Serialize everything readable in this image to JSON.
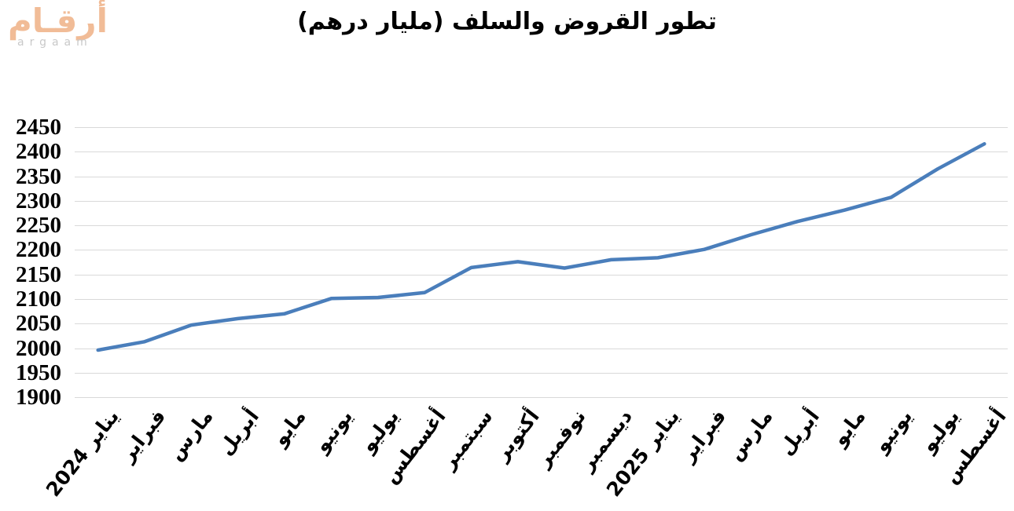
{
  "logo": {
    "arabic": "أرقـام",
    "latin": "argaam"
  },
  "colors": {
    "line": "#4a7ebb",
    "gridline": "#d9d9d9",
    "logo_arabic": "#f1bc97",
    "logo_latin": "#c9c9c9",
    "text": "#000000"
  },
  "chart_data": {
    "type": "line",
    "title": "تطور القروض والسلف (مليار درهم)",
    "categories": [
      "يناير 2024",
      "فبراير",
      "مارس",
      "أبريل",
      "مايو",
      "يونيو",
      "يوليو",
      "أغسطس",
      "سبتمبر",
      "أكتوبر",
      "نوفمبر",
      "ديسمبر",
      "يناير 2025",
      "فبراير",
      "مارس",
      "أبريل",
      "مايو",
      "يونيو",
      "يوليو",
      "أغسطس"
    ],
    "values": [
      1996,
      2013,
      2047,
      2060,
      2070,
      2101,
      2103,
      2113,
      2164,
      2176,
      2163,
      2180,
      2184,
      2201,
      2231,
      2258,
      2281,
      2307,
      2365,
      2416
    ],
    "xlabel": "",
    "ylabel": "",
    "ylim": [
      1900,
      2450
    ],
    "ytick_step": 50,
    "yticks": [
      1900,
      1950,
      2000,
      2050,
      2100,
      2150,
      2200,
      2250,
      2300,
      2350,
      2400,
      2450
    ],
    "grid": true,
    "legend_position": "none",
    "series_name": "القروض والسلف"
  }
}
